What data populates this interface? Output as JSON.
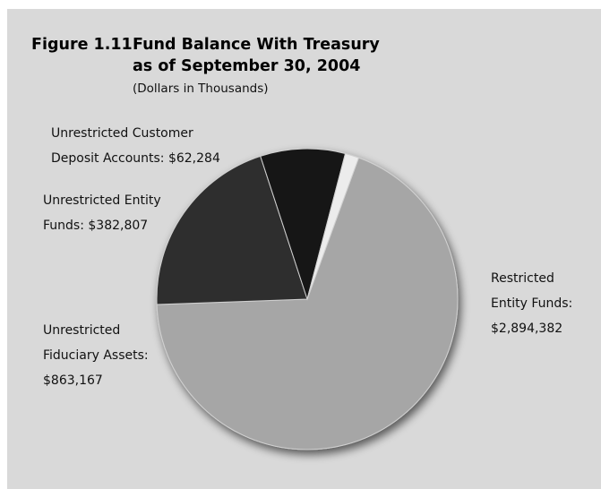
{
  "figure": {
    "number": "Figure 1.11",
    "title_line1": "Fund Balance With Treasury",
    "title_line2": "as of September 30, 2004",
    "subtitle": "(Dollars in Thousands)"
  },
  "labels": {
    "restricted": [
      "Restricted",
      "Entity Funds:",
      "$2,894,382"
    ],
    "fiduciary": [
      "Unrestricted",
      "Fiduciary Assets:",
      "$863,167"
    ],
    "entity": [
      "Unrestricted Entity",
      "Funds: $382,807"
    ],
    "customer": [
      "Unrestricted Customer",
      "Deposit Accounts: $62,284"
    ]
  },
  "chart_data": {
    "type": "pie",
    "title": "Fund Balance With Treasury as of September 30, 2004",
    "subtitle": "(Dollars in Thousands)",
    "slices": [
      {
        "name": "Restricted Entity Funds",
        "value": 2894382,
        "color": "#a6a6a6"
      },
      {
        "name": "Unrestricted Fiduciary Assets",
        "value": 863167,
        "color": "#2e2e2e"
      },
      {
        "name": "Unrestricted Entity Funds",
        "value": 382807,
        "color": "#141414"
      },
      {
        "name": "Unrestricted Customer Deposit Accounts",
        "value": 62284,
        "color": "#ececec"
      }
    ],
    "legend": "none"
  }
}
